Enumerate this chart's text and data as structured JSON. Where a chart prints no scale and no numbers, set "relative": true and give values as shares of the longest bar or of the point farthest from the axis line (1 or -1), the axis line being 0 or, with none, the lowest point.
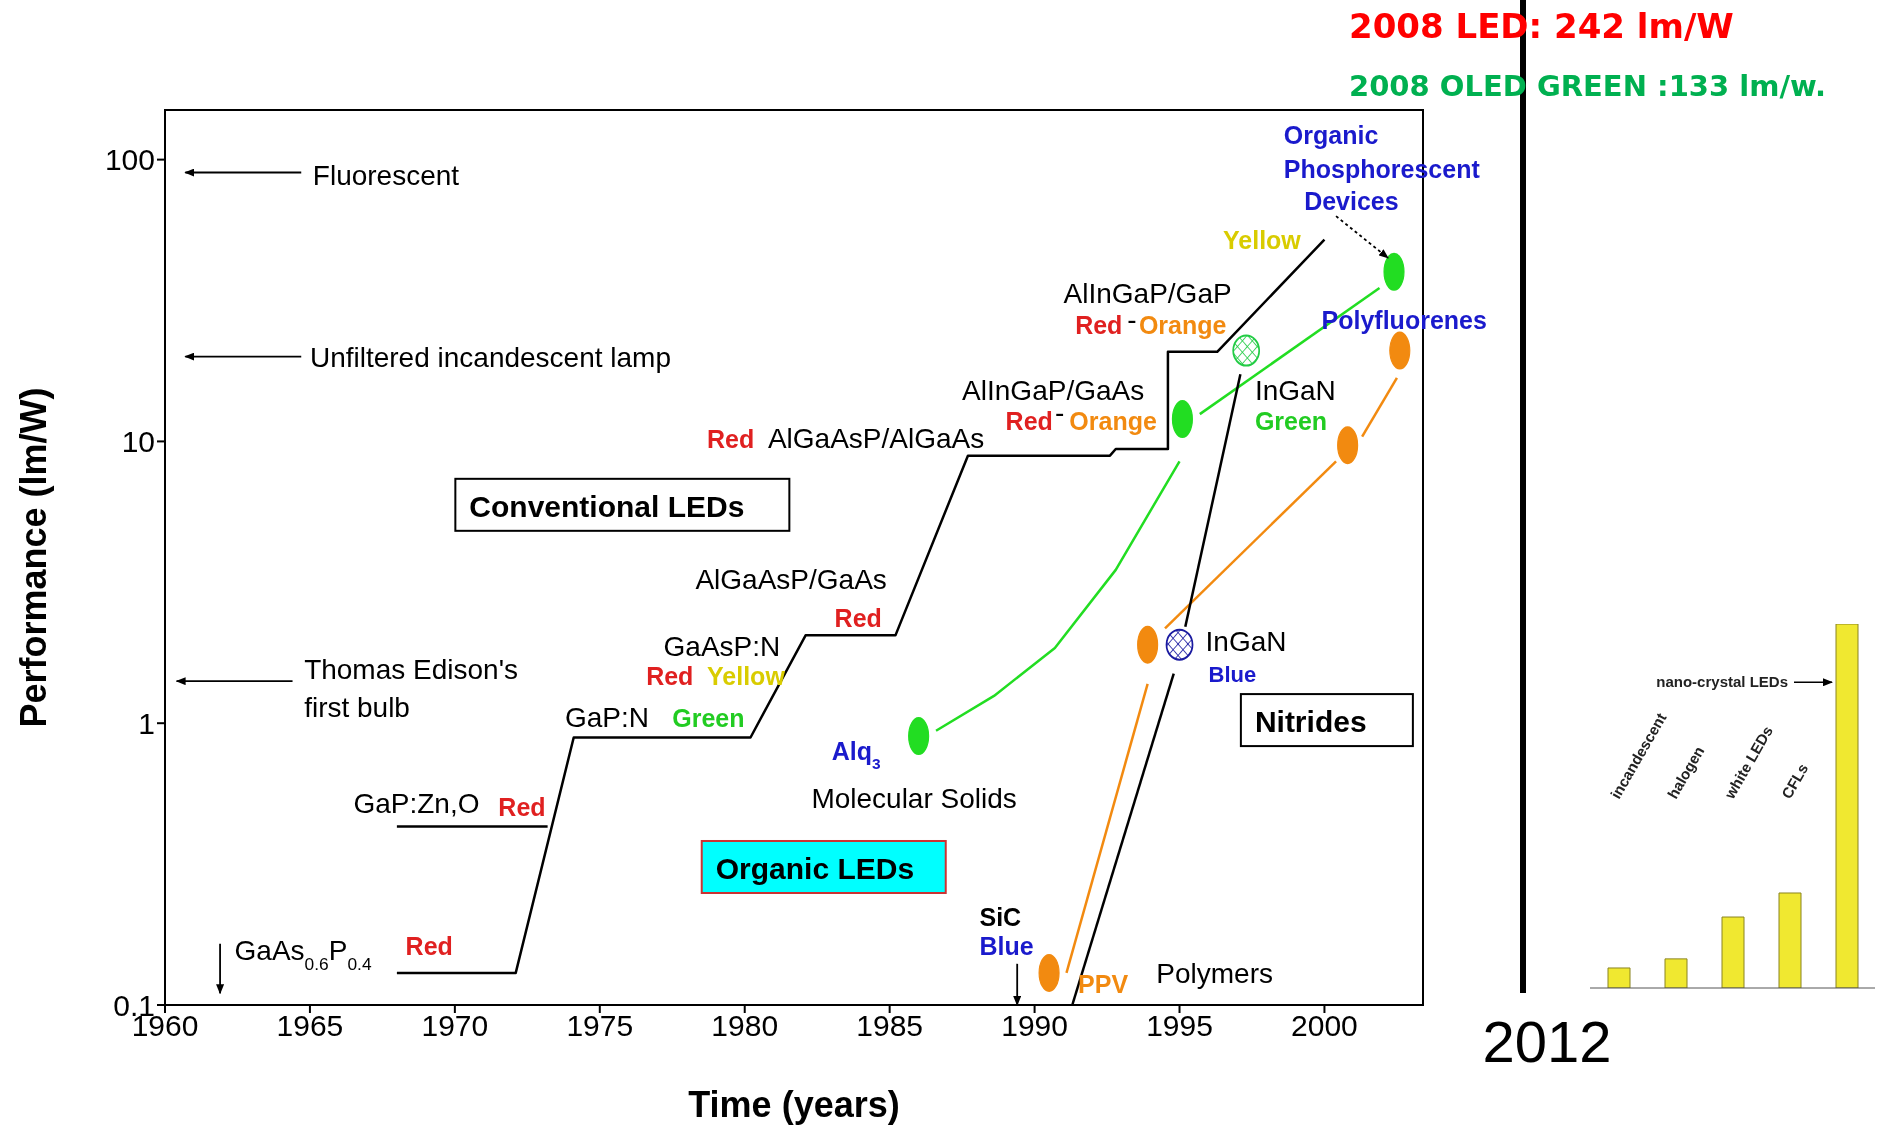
{
  "chart_data": [
    {
      "type": "line",
      "xlabel": "Time (years)",
      "ylabel": "Performance (lm/W)",
      "log": "y",
      "xlim": [
        1960,
        2003.4
      ],
      "ylim": [
        0.1,
        150
      ],
      "xticks": [
        1960,
        1965,
        1970,
        1975,
        1980,
        1985,
        1990,
        1995,
        2000
      ],
      "yticks": [
        0.1,
        1,
        10,
        100
      ],
      "series": [
        {
          "type": "line",
          "color": "#000000",
          "x": [
            1968,
            1972.1,
            1974.1,
            1980.2,
            1982.1,
            1985.2,
            1987.7,
            1992.6,
            1992.8,
            1994.6,
            1994.6,
            1996.3,
            2000
          ],
          "values": [
            0.13,
            0.13,
            0.89,
            0.89,
            2.05,
            2.05,
            8.9,
            8.9,
            9.4,
            9.4,
            20.8,
            20.8,
            52
          ]
        },
        {
          "type": "line",
          "color": "#000000",
          "x": [
            1968,
            1973.2
          ],
          "values": [
            0.43,
            0.43
          ]
        },
        {
          "type": "line",
          "color": "#22dd22",
          "x": [
            1986.6,
            1988.6,
            1990.7,
            1992.8,
            1995.0
          ],
          "values": [
            0.94,
            1.25,
            1.85,
            3.5,
            8.5
          ]
        },
        {
          "type": "line",
          "color": "#22dd22",
          "x": [
            1995.7,
            2001.9
          ],
          "values": [
            12.5,
            35
          ]
        },
        {
          "type": "line",
          "color": "#f28a10",
          "x": [
            1991.1,
            1993.9
          ],
          "values": [
            0.13,
            1.38
          ]
        },
        {
          "type": "line",
          "color": "#f28a10",
          "x": [
            1994.5,
            2000.4
          ],
          "values": [
            2.17,
            8.5
          ]
        },
        {
          "type": "line",
          "color": "#f28a10",
          "x": [
            2001.3,
            2002.5
          ],
          "values": [
            10.4,
            16.8
          ]
        },
        {
          "type": "line",
          "color": "#000000",
          "x": [
            1991.3,
            1994.8
          ],
          "values": [
            0.1,
            1.5
          ]
        },
        {
          "type": "line",
          "color": "#000000",
          "x": [
            1995.2,
            1997.1
          ],
          "values": [
            2.2,
            17.3
          ]
        },
        {
          "type": "scatter",
          "color": "#22dd22",
          "x": [
            1986.0,
            1995.1,
            2002.4
          ],
          "values": [
            0.9,
            12,
            40
          ]
        },
        {
          "type": "scatter",
          "color": "#22cc44",
          "x": [
            1997.3
          ],
          "values": [
            21
          ]
        },
        {
          "type": "scatter",
          "color": "#f28a10",
          "x": [
            1990.5,
            1993.9,
            2000.8,
            2002.6
          ],
          "values": [
            0.13,
            1.9,
            9.7,
            21
          ]
        },
        {
          "type": "scatter",
          "color": "#1a1aa0",
          "x": [
            1995.0
          ],
          "values": [
            1.9
          ]
        }
      ],
      "annotations": [
        "Fluorescent",
        "Unfiltered incandescent lamp",
        "Thomas Edison's",
        "first bulb",
        "GaAs$_{0.6}$P$_{0.4}$",
        "Red",
        "GaP:Zn,O",
        "Red",
        "GaP:N",
        "Green",
        "GaAsP:N",
        "Red",
        "Yellow",
        "AlGaAsP/GaAs",
        "Red",
        "Red",
        "AlGaAsP/AlGaAs",
        "AlInGaP/GaAs",
        "Red",
        "-",
        "Orange",
        "AlInGaP/GaP",
        "Red",
        "-",
        "Orange",
        "Yellow",
        "Organic",
        "Phosphorescent",
        {
          "text": "Devices",
          "x": 2002.4,
          "y": 40
        },
        "Polyfluorenes",
        "InGaN",
        "Green",
        "InGaN",
        "Blue",
        "Nitrides",
        "Conventional LEDs",
        "Alq$_{3}$",
        "Molecular Solids",
        "Organic LEDs",
        "SiC",
        "Blue",
        "PPV",
        "Polymers"
      ]
    },
    {
      "type": "bar",
      "relative": true,
      "color": "#f0e830",
      "categories": [
        "incandescent",
        "halogen",
        "white LEDs",
        "CFLs",
        null
      ],
      "values": [
        0.055,
        0.08,
        0.195,
        0.261,
        1
      ],
      "annotations": [
        "2008 LED: 242 lm/W",
        "2008 OLED GREEN :133 lm/w.",
        "2012",
        "nano-crystal LEDs"
      ]
    }
  ]
}
